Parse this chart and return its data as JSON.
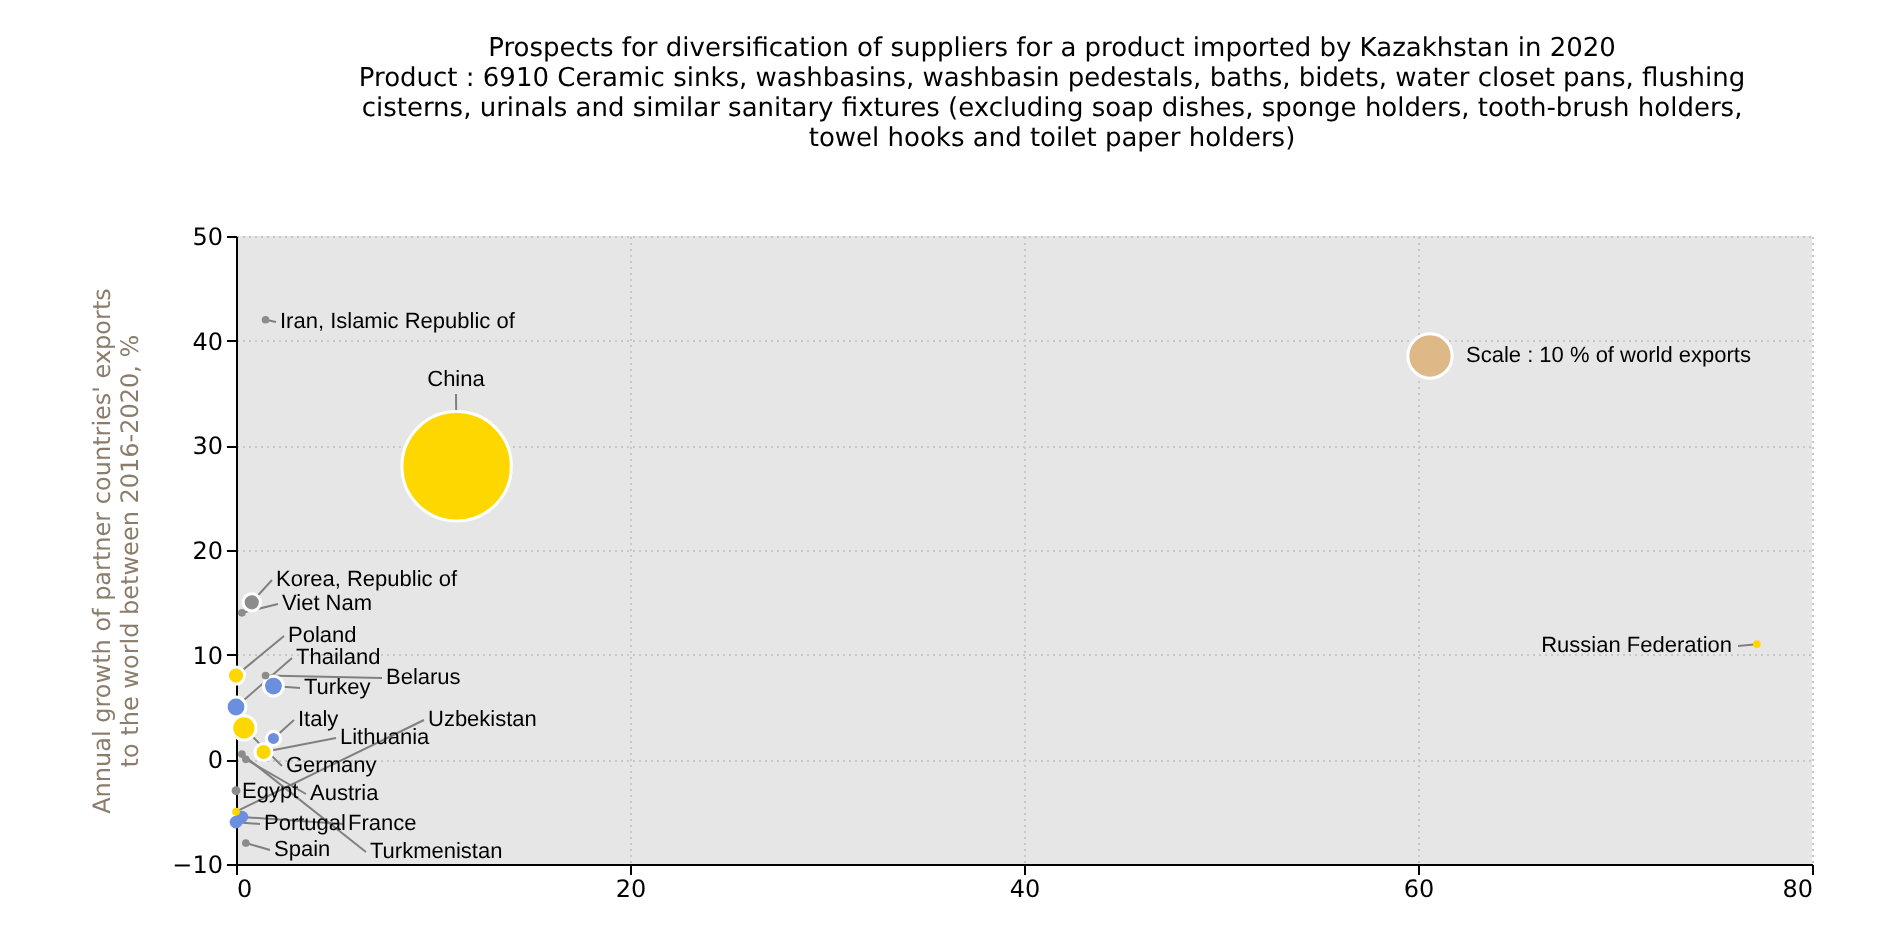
{
  "chart_data": {
    "type": "bubble",
    "title": "Prospects for diversification of suppliers for a product imported by Kazakhstan in 2020",
    "subtitle": "Product : 6910 Ceramic sinks, washbasins, washbasin pedestals, baths, bidets, water closet pans, flushing cisterns, urinals and similar sanitary fixtures (excluding soap dishes, sponge holders, tooth-brush holders, towel hooks and toilet paper holders)",
    "ylabel": "Annual growth of partner countries' exports to the world between 2016-2020, %",
    "x": [
      11.2,
      1.5,
      0.8,
      0.3,
      0,
      0,
      1.5,
      1.9,
      0.4,
      1.9,
      1.4,
      0,
      0,
      0.5,
      0.3,
      0,
      0.3,
      0.5,
      77.2
    ],
    "values": [
      28,
      42,
      15,
      14,
      8,
      5,
      8,
      7,
      3,
      2,
      0.7,
      -5,
      -3,
      0,
      0.5,
      -6,
      -5.5,
      -8,
      11
    ],
    "sizes": [
      61,
      0.3,
      1.5,
      0.3,
      1.5,
      2,
      0.3,
      2,
      3,
      1,
      1.5,
      0.3,
      0.4,
      0.3,
      0.3,
      0.8,
      0.8,
      0.3,
      0.3
    ],
    "colors": [
      "#ffd700",
      "#8c8c8c",
      "#8c8c8c",
      "#8c8c8c",
      "#ffd700",
      "#6b8fdf",
      "#8c8c8c",
      "#6b8fdf",
      "#ffd700",
      "#6b8fdf",
      "#ffd700",
      "#ffd700",
      "#8c8c8c",
      "#8c8c8c",
      "#8c8c8c",
      "#6b8fdf",
      "#6b8fdf",
      "#8c8c8c",
      "#ffd700"
    ],
    "size_legend": [
      {
        "value": 10,
        "label": "Scale : 10 % of world exports"
      }
    ],
    "annotations": [
      {
        "text": "China",
        "x": 11.2,
        "y": 28
      },
      {
        "text": "Iran, Islamic Republic of",
        "x": 1.5,
        "y": 42
      },
      {
        "text": "Korea, Republic of",
        "x": 0.8,
        "y": 15
      },
      {
        "text": "Viet Nam",
        "x": 0.3,
        "y": 14
      },
      {
        "text": "Poland",
        "x": 0,
        "y": 8
      },
      {
        "text": "Thailand",
        "x": 0,
        "y": 5
      },
      {
        "text": "Belarus",
        "x": 1.5,
        "y": 8
      },
      {
        "text": "Turkey",
        "x": 1.9,
        "y": 7
      },
      {
        "text": "Germany",
        "x": 0.4,
        "y": 3
      },
      {
        "text": "Italy",
        "x": 1.9,
        "y": 2
      },
      {
        "text": "Lithuania",
        "x": 1.4,
        "y": 0.7
      },
      {
        "text": "Uzbekistan",
        "x": 0,
        "y": -5
      },
      {
        "text": "Egypt",
        "x": 0,
        "y": -3
      },
      {
        "text": "Austria",
        "x": 0.5,
        "y": 0
      },
      {
        "text": "Turkmenistan",
        "x": 0.3,
        "y": 0.5
      },
      {
        "text": "Portugal",
        "x": 0,
        "y": -6
      },
      {
        "text": "France",
        "x": 0.3,
        "y": -5.5
      },
      {
        "text": "Spain",
        "x": 0.5,
        "y": -8
      },
      {
        "text": "Russian Federation",
        "x": 77.2,
        "y": 11
      }
    ],
    "xlim": [
      0,
      80
    ],
    "xticks": [
      0,
      20,
      40,
      60,
      80
    ],
    "ylim": [
      -10,
      50
    ],
    "yticks": [
      -10,
      0,
      10,
      20,
      30,
      40,
      50
    ],
    "grid": true
  }
}
